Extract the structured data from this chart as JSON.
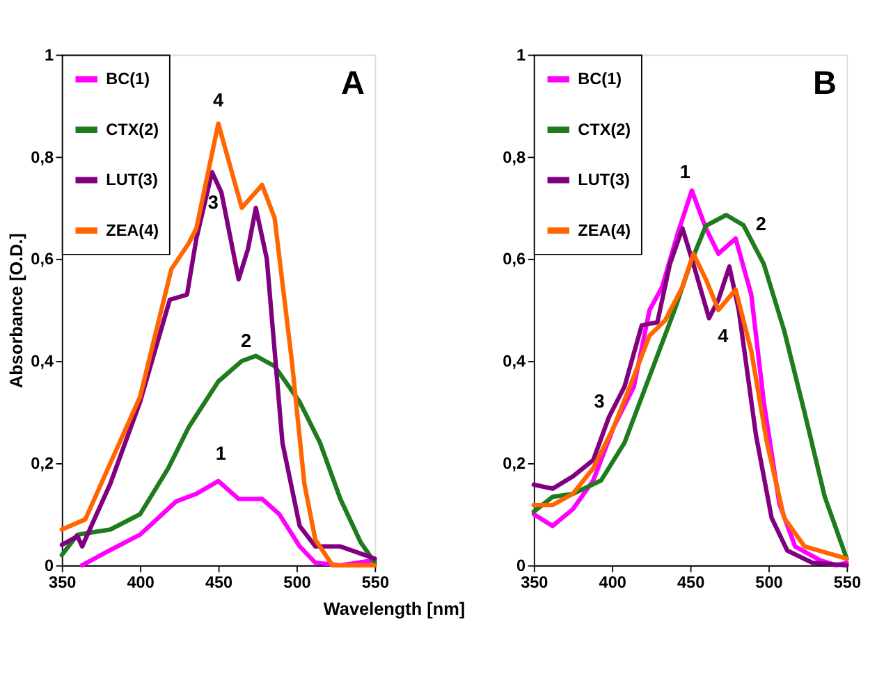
{
  "chart_data": [
    {
      "type": "line",
      "xlabel": "Wavelength [nm]",
      "ylabel": "Absorbance [O.D.]",
      "xlim": [
        350,
        550
      ],
      "xticks": [
        350,
        400,
        450,
        500,
        550
      ],
      "ylim": [
        0,
        1
      ],
      "yticks": [
        0,
        {
          "value": 0.2,
          "label": "0,2"
        },
        {
          "value": 0.4,
          "label": "0,4"
        },
        {
          "value": 0.6,
          "label": "0,6"
        },
        {
          "value": 0.8,
          "label": "0,8"
        },
        1
      ],
      "grid": false,
      "legend": "top left",
      "marker": "none",
      "line_style": "solid",
      "series": [
        {
          "name": "BC(1)",
          "color": "#ff00ff",
          "x": [
            363,
            381,
            400,
            423,
            436,
            450,
            463,
            478,
            489,
            502,
            512,
            528,
            550
          ],
          "values": [
            0,
            0.03,
            0.06,
            0.125,
            0.14,
            0.165,
            0.13,
            0.13,
            0.1,
            0.037,
            0.005,
            0,
            0.01
          ]
        },
        {
          "name": "CTX(2)",
          "color": "#1e7b1e",
          "x": [
            350,
            360,
            381,
            400,
            418,
            431,
            450,
            465,
            474,
            486,
            502,
            515,
            528,
            541,
            550
          ],
          "values": [
            0.02,
            0.06,
            0.07,
            0.1,
            0.19,
            0.27,
            0.36,
            0.4,
            0.41,
            0.39,
            0.32,
            0.24,
            0.13,
            0.045,
            0.005
          ]
        },
        {
          "name": "LUT(3)",
          "color": "#800080",
          "x": [
            350,
            360,
            363,
            381,
            400,
            419,
            430,
            436,
            446,
            452,
            463,
            469,
            474,
            481,
            491,
            502,
            512,
            528,
            550
          ],
          "values": [
            0.04,
            0.057,
            0.037,
            0.16,
            0.32,
            0.52,
            0.53,
            0.64,
            0.77,
            0.73,
            0.56,
            0.62,
            0.7,
            0.6,
            0.24,
            0.077,
            0.037,
            0.037,
            0.013
          ]
        },
        {
          "name": "ZEA(4)",
          "color": "#ff6600",
          "x": [
            350,
            365,
            381,
            400,
            420,
            431,
            436,
            450,
            465,
            478,
            486,
            497,
            505,
            512,
            523,
            550
          ],
          "values": [
            0.07,
            0.09,
            0.2,
            0.33,
            0.58,
            0.63,
            0.66,
            0.865,
            0.7,
            0.745,
            0.68,
            0.4,
            0.16,
            0.05,
            0,
            0
          ]
        }
      ],
      "annotations": [
        "A",
        "4",
        "3",
        "2",
        "1"
      ]
    },
    {
      "type": "line",
      "xlim": [
        350,
        550
      ],
      "xticks": [
        350,
        400,
        450,
        500,
        550
      ],
      "ylim": [
        0,
        1
      ],
      "yticks": [
        0,
        {
          "value": 0.2,
          "label": "0,2"
        },
        {
          "value": 0.4,
          "label": "0,4"
        },
        {
          "value": 0.6,
          "label": "0,6"
        },
        {
          "value": 0.8,
          "label": "0,8"
        },
        1
      ],
      "grid": false,
      "legend": "top left",
      "marker": "none",
      "line_style": "solid",
      "series": [
        {
          "name": "BC(1)",
          "color": "#ff00ff",
          "x": [
            350,
            362,
            375,
            388,
            401,
            414,
            424,
            432,
            442,
            451,
            460,
            468,
            479,
            489,
            497,
            507,
            517,
            533,
            543,
            550
          ],
          "values": [
            0.1,
            0.077,
            0.11,
            0.166,
            0.27,
            0.35,
            0.5,
            0.545,
            0.65,
            0.734,
            0.66,
            0.61,
            0.64,
            0.53,
            0.32,
            0.12,
            0.037,
            0.01,
            0,
            0.005
          ]
        },
        {
          "name": "CTX(2)",
          "color": "#1e7b1e",
          "x": [
            350,
            362,
            375,
            393,
            408,
            424,
            440,
            450,
            460,
            473,
            484,
            497,
            510,
            523,
            536,
            550
          ],
          "values": [
            0.105,
            0.134,
            0.14,
            0.166,
            0.24,
            0.37,
            0.5,
            0.59,
            0.665,
            0.686,
            0.666,
            0.59,
            0.46,
            0.3,
            0.134,
            0.013
          ]
        },
        {
          "name": "LUT(3)",
          "color": "#800080",
          "x": [
            350,
            362,
            375,
            388,
            398,
            408,
            419,
            429,
            437,
            445,
            452,
            462,
            468,
            475,
            481,
            492,
            502,
            512,
            528,
            550
          ],
          "values": [
            0.158,
            0.15,
            0.174,
            0.206,
            0.29,
            0.35,
            0.47,
            0.476,
            0.59,
            0.66,
            0.59,
            0.484,
            0.52,
            0.585,
            0.5,
            0.255,
            0.093,
            0.029,
            0.005,
            0
          ]
        },
        {
          "name": "ZEA(4)",
          "color": "#ff6600",
          "x": [
            350,
            362,
            375,
            388,
            401,
            414,
            424,
            434,
            445,
            452,
            460,
            468,
            479,
            489,
            499,
            510,
            523,
            550
          ],
          "values": [
            0.118,
            0.118,
            0.14,
            0.19,
            0.27,
            0.37,
            0.45,
            0.48,
            0.545,
            0.61,
            0.56,
            0.5,
            0.54,
            0.42,
            0.24,
            0.093,
            0.037,
            0.013
          ]
        }
      ],
      "annotations": [
        "B",
        "1",
        "2",
        "3",
        "4"
      ]
    }
  ]
}
